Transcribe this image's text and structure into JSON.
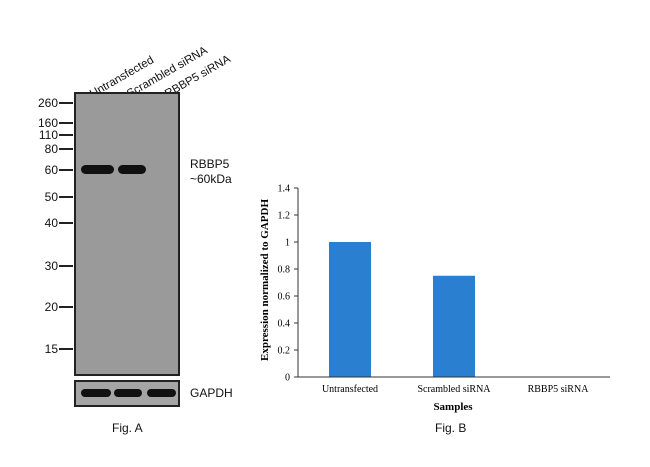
{
  "fig_a": {
    "lanes": [
      "Untransfected",
      "Scrambled siRNA",
      "RBBP5 siRNA"
    ],
    "markers": [
      "260",
      "160",
      "110",
      "80",
      "60",
      "50",
      "40",
      "30",
      "20",
      "15"
    ],
    "target_label_line1": "RBBP5",
    "target_label_line2": "~60kDa",
    "loading_control": "GAPDH",
    "caption": "Fig. A"
  },
  "fig_b": {
    "caption": "Fig. B"
  },
  "chart_data": {
    "type": "bar",
    "categories": [
      "Untransfected",
      "Scrambled siRNA",
      "RBBP5 siRNA"
    ],
    "values": [
      1.0,
      0.75,
      0.0
    ],
    "xlabel": "Samples",
    "ylabel": "Expression normalized to GAPDH",
    "ylim": [
      0,
      1.4
    ],
    "yticks": [
      "0",
      "0.2",
      "0.4",
      "0.6",
      "0.8",
      "1",
      "1.2",
      "1.4"
    ],
    "bar_color": "#2b7fd1",
    "grid": false
  }
}
